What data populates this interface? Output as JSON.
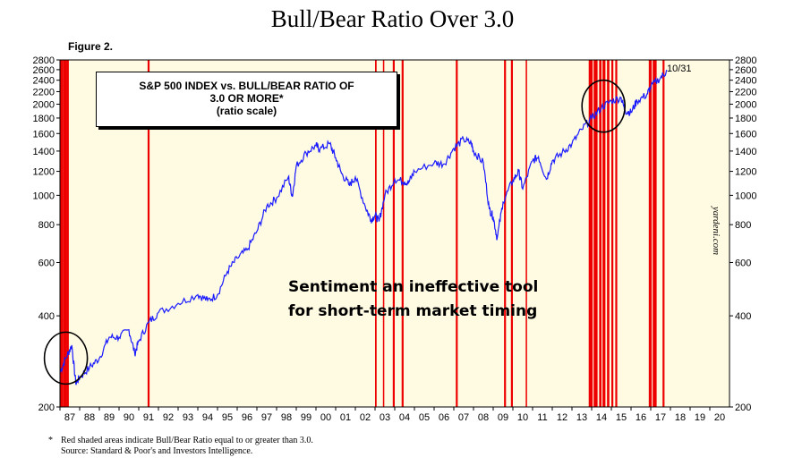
{
  "title": "Bull/Bear Ratio Over 3.0",
  "figure_label": "Figure 2.",
  "legend": {
    "line1": "S&P 500 INDEX vs. BULL/BEAR RATIO OF",
    "line2": "3.0 OR MORE*",
    "line3": "(ratio scale)"
  },
  "annotation": {
    "line1": "Sentiment an ineffective tool",
    "line2": "for short-term market timing"
  },
  "watermark": "yardeni.com",
  "latest_label": "10/31",
  "footnote": {
    "star": "*",
    "line1": "Red shaded areas indicate Bull/Bear Ratio equal to or greater than 3.0.",
    "line2": "Source: Standard & Poor's and Investors Intelligence."
  },
  "colors": {
    "plot_bg": "#fffbe3",
    "series": "#1a1aff",
    "shade": "#ee0000",
    "circle": "#000000"
  },
  "chart_data": {
    "type": "line",
    "title": "Bull/Bear Ratio Over 3.0",
    "scale": "log",
    "ylim": [
      200,
      2800
    ],
    "xlim": [
      1987.0,
      2021.0
    ],
    "y_ticks": [
      200,
      400,
      600,
      800,
      1000,
      1200,
      1400,
      1600,
      1800,
      2000,
      2200,
      2400,
      2600,
      2800
    ],
    "x_ticks": [
      "87",
      "88",
      "89",
      "90",
      "91",
      "92",
      "93",
      "94",
      "95",
      "96",
      "97",
      "98",
      "99",
      "00",
      "01",
      "02",
      "03",
      "04",
      "05",
      "06",
      "07",
      "08",
      "09",
      "10",
      "11",
      "12",
      "13",
      "14",
      "15",
      "16",
      "17",
      "18",
      "19",
      "20"
    ],
    "series": [
      {
        "values": [
          [
            1987.0,
            260
          ],
          [
            1987.3,
            290
          ],
          [
            1987.6,
            320
          ],
          [
            1987.8,
            240
          ],
          [
            1988.0,
            250
          ],
          [
            1988.5,
            270
          ],
          [
            1989.0,
            290
          ],
          [
            1989.5,
            340
          ],
          [
            1990.0,
            340
          ],
          [
            1990.5,
            360
          ],
          [
            1990.8,
            300
          ],
          [
            1991.0,
            330
          ],
          [
            1991.5,
            380
          ],
          [
            1992.0,
            410
          ],
          [
            1993.0,
            440
          ],
          [
            1994.0,
            470
          ],
          [
            1994.5,
            450
          ],
          [
            1995.0,
            470
          ],
          [
            1995.5,
            560
          ],
          [
            1996.0,
            620
          ],
          [
            1996.5,
            660
          ],
          [
            1997.0,
            760
          ],
          [
            1997.5,
            920
          ],
          [
            1998.0,
            980
          ],
          [
            1998.6,
            1150
          ],
          [
            1998.8,
            990
          ],
          [
            1999.0,
            1250
          ],
          [
            1999.5,
            1380
          ],
          [
            2000.0,
            1460
          ],
          [
            2000.2,
            1420
          ],
          [
            2000.7,
            1480
          ],
          [
            2001.0,
            1330
          ],
          [
            2001.3,
            1180
          ],
          [
            2001.7,
            1080
          ],
          [
            2002.0,
            1150
          ],
          [
            2002.5,
            920
          ],
          [
            2002.8,
            830
          ],
          [
            2003.0,
            860
          ],
          [
            2003.2,
            820
          ],
          [
            2003.5,
            1000
          ],
          [
            2004.0,
            1130
          ],
          [
            2004.5,
            1110
          ],
          [
            2004.7,
            1100
          ],
          [
            2005.0,
            1200
          ],
          [
            2006.0,
            1280
          ],
          [
            2006.5,
            1270
          ],
          [
            2007.0,
            1430
          ],
          [
            2007.5,
            1530
          ],
          [
            2007.9,
            1480
          ],
          [
            2008.0,
            1400
          ],
          [
            2008.5,
            1280
          ],
          [
            2008.8,
            900
          ],
          [
            2009.0,
            850
          ],
          [
            2009.2,
            720
          ],
          [
            2009.5,
            950
          ],
          [
            2010.0,
            1120
          ],
          [
            2010.3,
            1200
          ],
          [
            2010.5,
            1050
          ],
          [
            2011.0,
            1300
          ],
          [
            2011.3,
            1340
          ],
          [
            2011.7,
            1130
          ],
          [
            2012.0,
            1300
          ],
          [
            2012.5,
            1380
          ],
          [
            2013.0,
            1480
          ],
          [
            2013.5,
            1650
          ],
          [
            2014.0,
            1800
          ],
          [
            2014.5,
            1950
          ],
          [
            2015.0,
            2050
          ],
          [
            2015.5,
            2100
          ],
          [
            2015.7,
            1900
          ],
          [
            2016.0,
            1880
          ],
          [
            2016.3,
            2050
          ],
          [
            2016.8,
            2150
          ],
          [
            2017.0,
            2280
          ],
          [
            2017.5,
            2450
          ],
          [
            2017.83,
            2575
          ]
        ]
      }
    ],
    "shaded_periods": [
      [
        1987.0,
        1987.15
      ],
      [
        1987.15,
        1987.32
      ],
      [
        1987.32,
        1987.45
      ],
      [
        1991.45,
        1991.55
      ],
      [
        2003.0,
        2003.08
      ],
      [
        2003.4,
        2003.47
      ],
      [
        2003.9,
        2004.0
      ],
      [
        2004.35,
        2004.45
      ],
      [
        2007.1,
        2007.2
      ],
      [
        2009.55,
        2009.65
      ],
      [
        2009.9,
        2010.0
      ],
      [
        2010.65,
        2010.72
      ],
      [
        2013.85,
        2014.05
      ],
      [
        2014.1,
        2014.3
      ],
      [
        2014.38,
        2014.5
      ],
      [
        2014.55,
        2014.7
      ],
      [
        2014.78,
        2014.9
      ],
      [
        2015.0,
        2015.1
      ],
      [
        2015.2,
        2015.3
      ],
      [
        2016.9,
        2017.05
      ],
      [
        2017.1,
        2017.3
      ],
      [
        2017.6,
        2017.7
      ]
    ],
    "circled_points": [
      [
        1987.3,
        290
      ],
      [
        2014.6,
        1970
      ]
    ]
  }
}
